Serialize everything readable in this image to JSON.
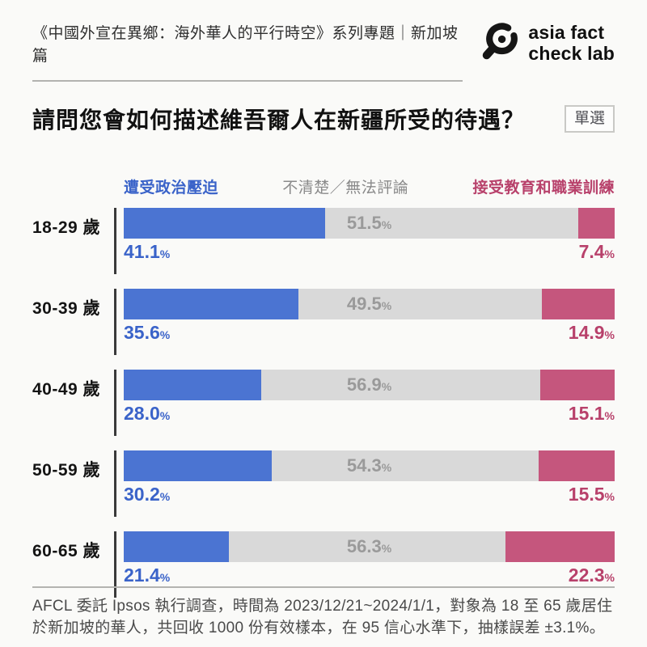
{
  "header": {
    "series_title": "《中國外宣在異鄉：海外華人的平行時空》系列專題｜新加坡篇",
    "logo": {
      "line1": "asia fact",
      "line2": "check lab"
    }
  },
  "question": {
    "title": "請問您會如何描述維吾爾人在新疆所受的待遇？",
    "badge": "單選"
  },
  "colors": {
    "background": "#fafaf8",
    "oppression_bar": "#4b74d2",
    "oppression_text": "#3a63c9",
    "unclear_bar": "#d9d9d9",
    "unclear_legend_text": "#8a8a8a",
    "unclear_value_text": "#9a9a9a",
    "education_bar": "#c5567d",
    "education_text": "#b8416b",
    "axis_line": "#3a3a3a"
  },
  "chart_data": {
    "type": "bar",
    "orientation": "horizontal-stacked-100pct",
    "title": "請問您會如何描述維吾爾人在新疆所受的待遇？",
    "categories": [
      "18-29 歲",
      "30-39 歲",
      "40-49 歲",
      "50-59 歲",
      "60-65 歲"
    ],
    "series": [
      {
        "name": "遭受政治壓迫",
        "color": "#4b74d2",
        "values": [
          "41.1",
          "35.6",
          "28.0",
          "30.2",
          "21.4"
        ]
      },
      {
        "name": "不清楚／無法評論",
        "color": "#d9d9d9",
        "values": [
          "51.5",
          "49.5",
          "56.9",
          "54.3",
          "56.3"
        ]
      },
      {
        "name": "接受教育和職業訓練",
        "color": "#c5567d",
        "values": [
          "7.4",
          "14.9",
          "15.1",
          "15.5",
          "22.3"
        ]
      }
    ],
    "unit": "%",
    "xlim": [
      0,
      100
    ],
    "legend_position": "top",
    "value_labels": "blue below-left, gray centered inside bar, pink below-right"
  },
  "footer": {
    "note": "AFCL 委託 Ipsos 執行調查，時間為 2023/12/21~2024/1/1，對象為 18 至 65 歲居住於新加坡的華人，共回收 1000 份有效樣本，在 95 信心水準下，抽樣誤差 ±3.1%。"
  }
}
